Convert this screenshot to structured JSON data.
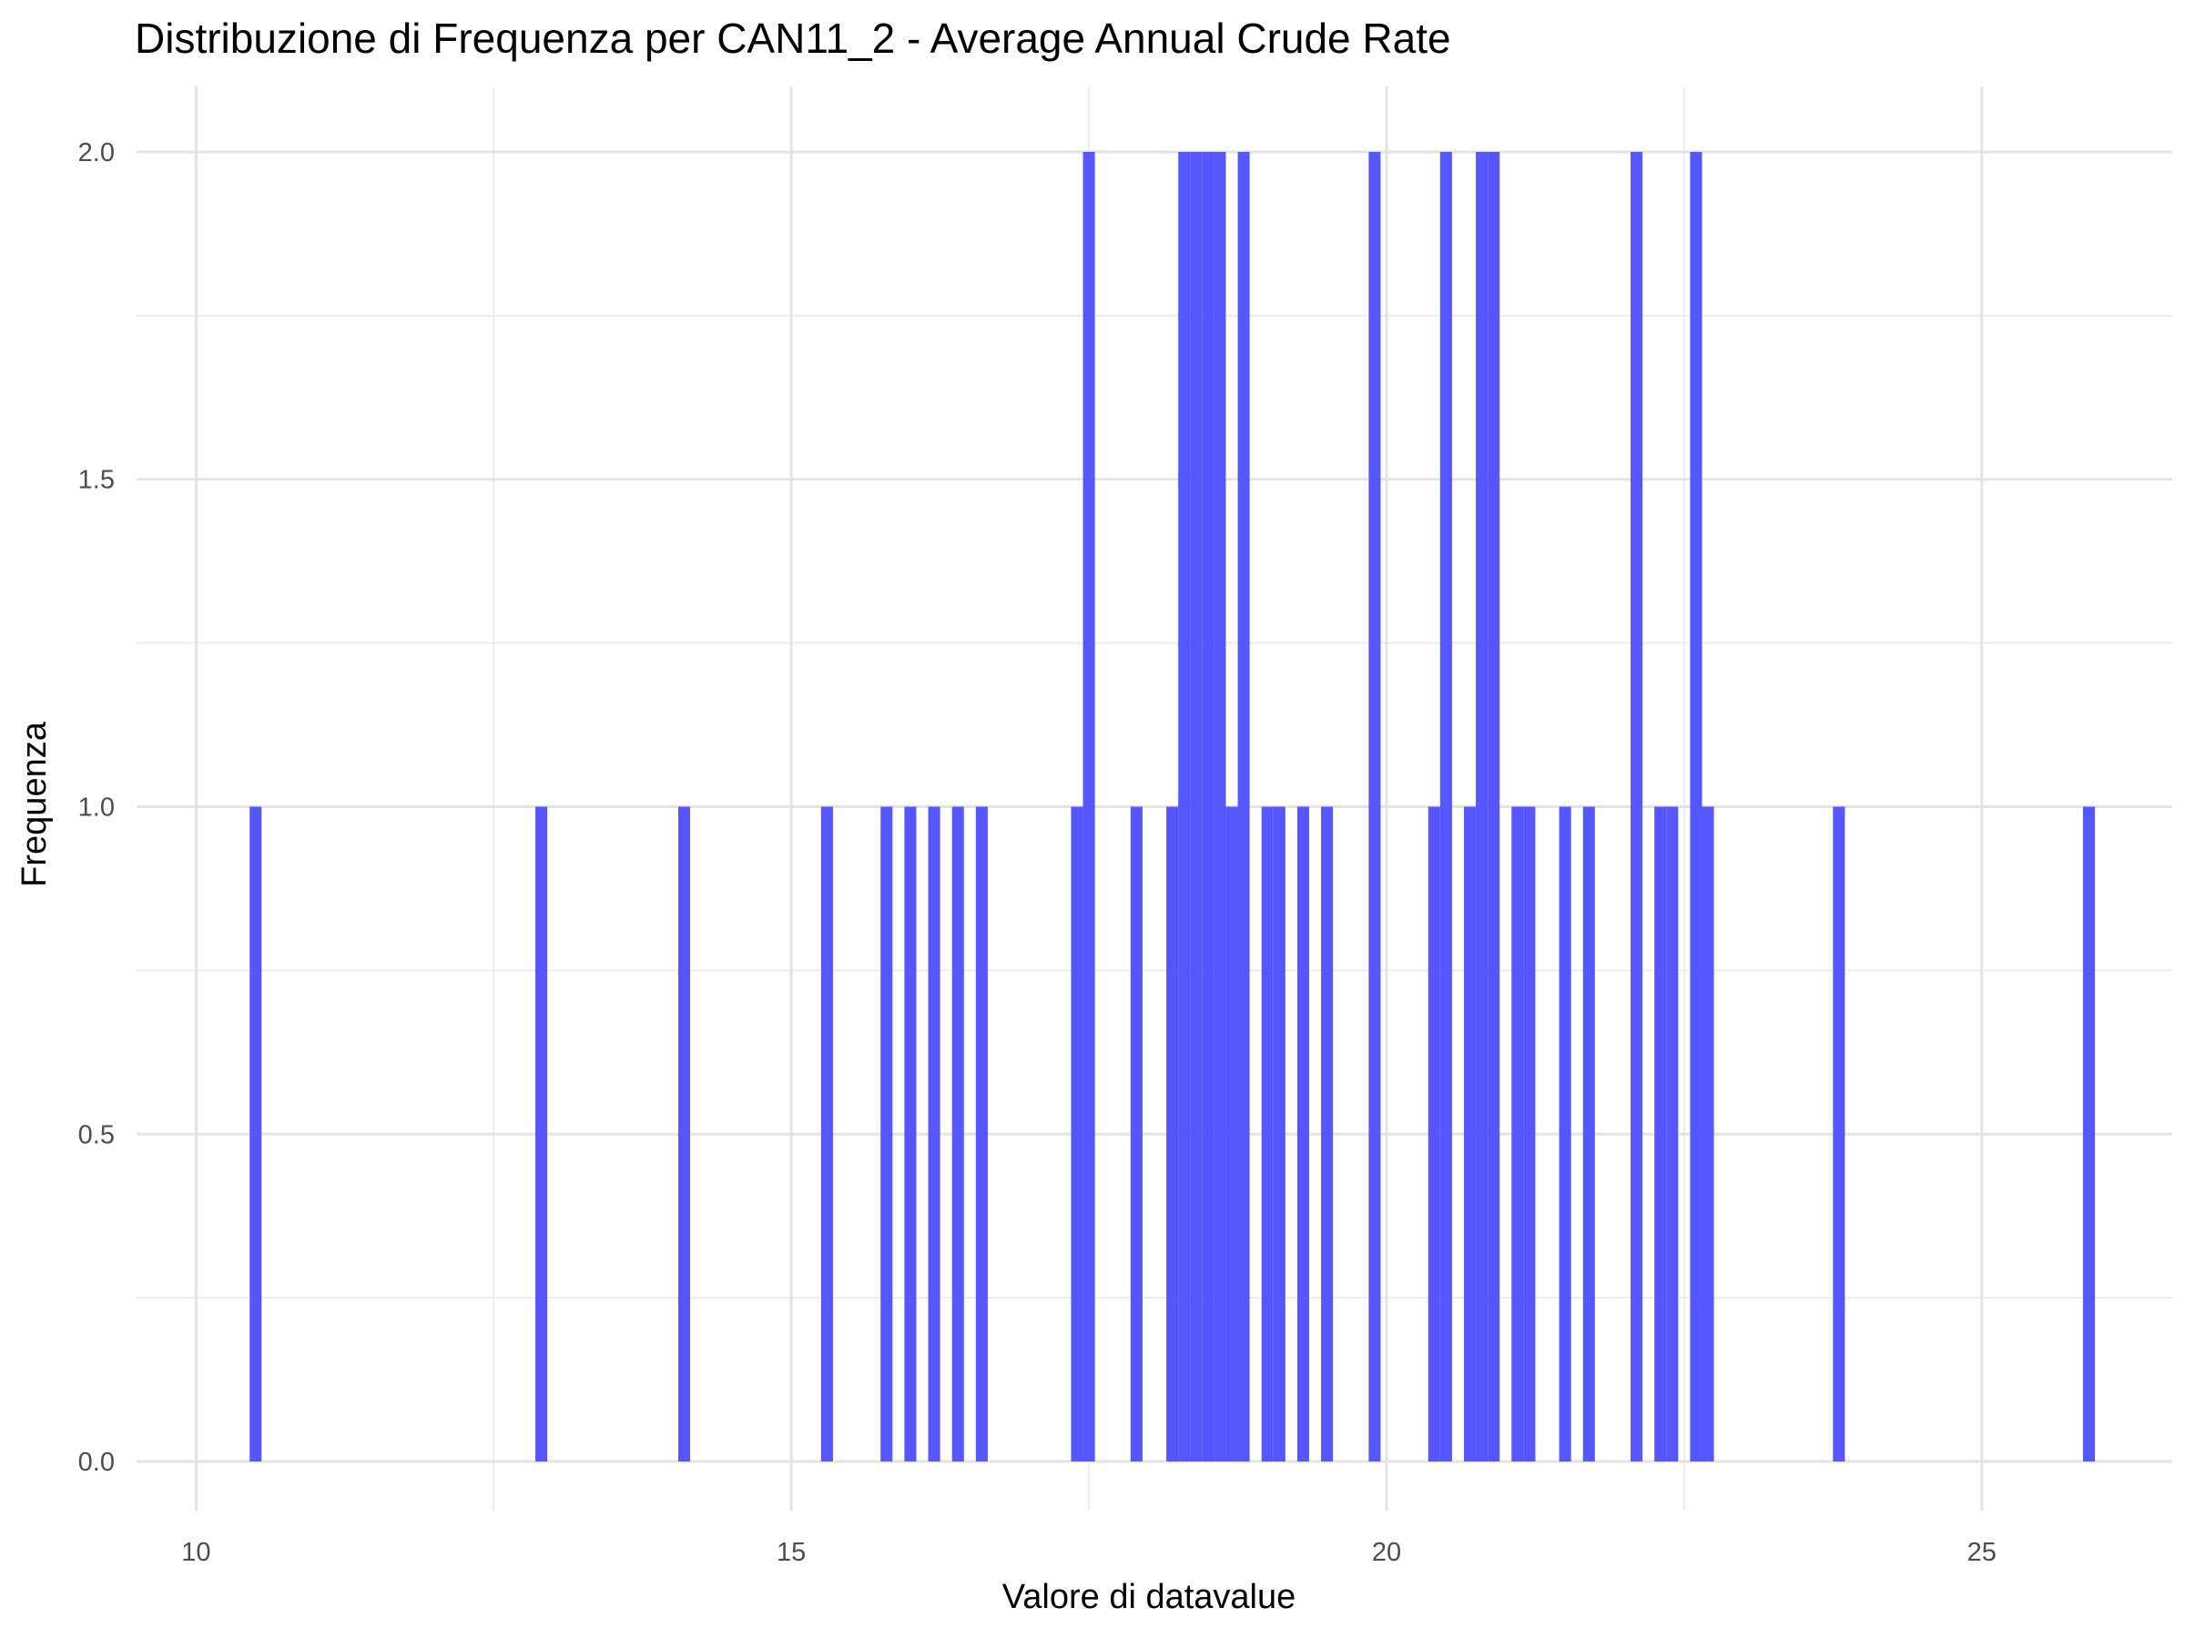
{
  "chart_data": {
    "type": "bar",
    "title": "Distribuzione di Frequenza per CAN11_2 - Average Annual Crude Rate",
    "xlabel": "Valore di datavalue",
    "ylabel": "Frequenza",
    "xlim": [
      9.5,
      26.6
    ],
    "ylim": [
      -0.075,
      2.1
    ],
    "x_ticks": [
      10,
      15,
      20,
      25
    ],
    "x_tick_labels": [
      "10",
      "15",
      "20",
      "25"
    ],
    "y_ticks": [
      0,
      0.5,
      1,
      1.5,
      2
    ],
    "y_tick_labels": [
      "0.0",
      "0.5",
      "1.0",
      "1.5",
      "2.0"
    ],
    "bin_width": 0.1,
    "grid": true,
    "bar_color": "#4d4dff",
    "bar_opacity": 0.95,
    "bins": [
      {
        "x": 10.5,
        "count": 1
      },
      {
        "x": 12.9,
        "count": 1
      },
      {
        "x": 14.1,
        "count": 1
      },
      {
        "x": 15.3,
        "count": 1
      },
      {
        "x": 15.8,
        "count": 1
      },
      {
        "x": 16.0,
        "count": 1
      },
      {
        "x": 16.2,
        "count": 1
      },
      {
        "x": 16.4,
        "count": 1
      },
      {
        "x": 16.6,
        "count": 1
      },
      {
        "x": 17.4,
        "count": 1
      },
      {
        "x": 17.5,
        "count": 2
      },
      {
        "x": 17.9,
        "count": 1
      },
      {
        "x": 18.2,
        "count": 1
      },
      {
        "x": 18.3,
        "count": 2
      },
      {
        "x": 18.4,
        "count": 2
      },
      {
        "x": 18.5,
        "count": 2
      },
      {
        "x": 18.6,
        "count": 2
      },
      {
        "x": 18.7,
        "count": 1
      },
      {
        "x": 18.8,
        "count": 2
      },
      {
        "x": 19.0,
        "count": 1
      },
      {
        "x": 19.1,
        "count": 1
      },
      {
        "x": 19.3,
        "count": 1
      },
      {
        "x": 19.5,
        "count": 1
      },
      {
        "x": 19.9,
        "count": 2
      },
      {
        "x": 20.4,
        "count": 1
      },
      {
        "x": 20.5,
        "count": 2
      },
      {
        "x": 20.7,
        "count": 1
      },
      {
        "x": 20.8,
        "count": 2
      },
      {
        "x": 20.9,
        "count": 2
      },
      {
        "x": 21.1,
        "count": 1
      },
      {
        "x": 21.2,
        "count": 1
      },
      {
        "x": 21.5,
        "count": 1
      },
      {
        "x": 21.7,
        "count": 1
      },
      {
        "x": 22.1,
        "count": 2
      },
      {
        "x": 22.3,
        "count": 1
      },
      {
        "x": 22.4,
        "count": 1
      },
      {
        "x": 22.6,
        "count": 2
      },
      {
        "x": 22.7,
        "count": 1
      },
      {
        "x": 23.8,
        "count": 1
      },
      {
        "x": 25.9,
        "count": 1
      }
    ]
  }
}
